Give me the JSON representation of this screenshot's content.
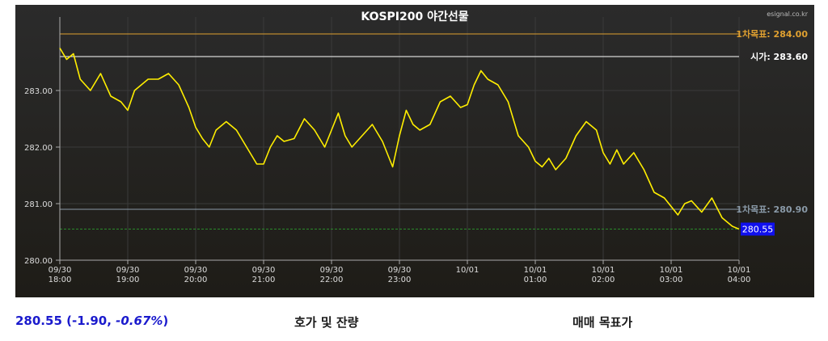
{
  "chart_data": {
    "type": "line",
    "title": "KOSPI200 야간선물",
    "source": "esignal.co.kr",
    "ylim": [
      280.0,
      284.3
    ],
    "yticks": [
      280.0,
      281.0,
      282.0,
      283.0
    ],
    "ytick_labels": [
      "280.00",
      "281.00",
      "282.00",
      "283.00"
    ],
    "xticks": [
      {
        "date": "09/30",
        "time": "18:00"
      },
      {
        "date": "09/30",
        "time": "19:00"
      },
      {
        "date": "09/30",
        "time": "20:00"
      },
      {
        "date": "09/30",
        "time": "21:00"
      },
      {
        "date": "09/30",
        "time": "22:00"
      },
      {
        "date": "09/30",
        "time": "23:00"
      },
      {
        "date": "10/01",
        "time": ""
      },
      {
        "date": "10/01",
        "time": "01:00"
      },
      {
        "date": "10/01",
        "time": "02:00"
      },
      {
        "date": "10/01",
        "time": "03:00"
      },
      {
        "date": "10/01",
        "time": "04:00"
      }
    ],
    "x_hours": [
      0,
      0.1,
      0.2,
      0.3,
      0.45,
      0.6,
      0.75,
      0.9,
      1.0,
      1.1,
      1.2,
      1.3,
      1.45,
      1.6,
      1.75,
      1.9,
      2.0,
      2.1,
      2.2,
      2.3,
      2.45,
      2.6,
      2.75,
      2.9,
      3.0,
      3.1,
      3.2,
      3.3,
      3.45,
      3.6,
      3.75,
      3.9,
      4.0,
      4.1,
      4.2,
      4.3,
      4.45,
      4.6,
      4.75,
      4.9,
      5.0,
      5.1,
      5.2,
      5.3,
      5.45,
      5.6,
      5.75,
      5.9,
      6.0,
      6.1,
      6.2,
      6.3,
      6.45,
      6.6,
      6.75,
      6.9,
      7.0,
      7.1,
      7.2,
      7.3,
      7.45,
      7.6,
      7.75,
      7.9,
      8.0,
      8.1,
      8.2,
      8.3,
      8.45,
      8.6,
      8.75,
      8.9,
      9.0,
      9.1,
      9.2,
      9.3,
      9.45,
      9.6,
      9.75,
      9.9,
      10.0
    ],
    "values": [
      283.75,
      283.55,
      283.65,
      283.2,
      283.0,
      283.3,
      282.9,
      282.8,
      282.65,
      283.0,
      283.1,
      283.2,
      283.2,
      283.3,
      283.1,
      282.7,
      282.35,
      282.15,
      282.0,
      282.3,
      282.45,
      282.3,
      282.0,
      281.7,
      281.7,
      282.0,
      282.2,
      282.1,
      282.15,
      282.5,
      282.3,
      282.0,
      282.3,
      282.6,
      282.2,
      282.0,
      282.2,
      282.4,
      282.1,
      281.65,
      282.2,
      282.65,
      282.4,
      282.3,
      282.4,
      282.8,
      282.9,
      282.7,
      282.75,
      283.1,
      283.35,
      283.2,
      283.1,
      282.8,
      282.2,
      282.0,
      281.75,
      281.65,
      281.8,
      281.6,
      281.8,
      282.2,
      282.45,
      282.3,
      281.9,
      281.7,
      281.95,
      281.7,
      281.9,
      281.6,
      281.2,
      281.1,
      280.95,
      280.8,
      281.0,
      281.05,
      280.85,
      281.1,
      280.75,
      280.6,
      280.55
    ],
    "lines": [
      {
        "label": "1차목표: 284.00",
        "value": 284.0,
        "color": "#e0a030"
      },
      {
        "label": "시가: 283.60",
        "value": 283.6,
        "color": "#ffffff"
      },
      {
        "label": "1차목표: 280.90",
        "value": 280.9,
        "color": "#8a9aa8"
      }
    ],
    "current": {
      "value": 280.55,
      "label": "280.55"
    },
    "grid": true,
    "series_color": "#ffee00"
  },
  "quote": {
    "price": "280.55",
    "change": "-1.90",
    "pct": "-0.67%"
  },
  "tabs": {
    "orderbook": "호가 및 잔량",
    "target": "매매 목표가"
  }
}
